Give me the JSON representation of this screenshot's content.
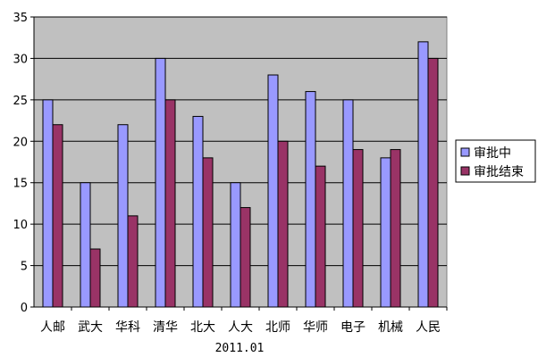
{
  "chart_data": {
    "type": "bar",
    "title": "",
    "xlabel": "2011.01",
    "ylabel": "",
    "ylim": [
      0,
      35
    ],
    "yticks": [
      0,
      5,
      10,
      15,
      20,
      25,
      30,
      35
    ],
    "grid": true,
    "legend_position": "right",
    "categories": [
      "人邮",
      "武大",
      "华科",
      "清华",
      "北大",
      "人大",
      "北师",
      "华师",
      "电子",
      "机械",
      "人民"
    ],
    "series": [
      {
        "name": "审批中",
        "color": "#9999ff",
        "values": [
          25,
          15,
          22,
          30,
          23,
          15,
          28,
          26,
          25,
          18,
          32
        ]
      },
      {
        "name": "审批结束",
        "color": "#993366",
        "values": [
          22,
          7,
          11,
          25,
          18,
          12,
          20,
          17,
          19,
          19,
          30
        ]
      }
    ],
    "plot_background": "#c0c0c0"
  }
}
